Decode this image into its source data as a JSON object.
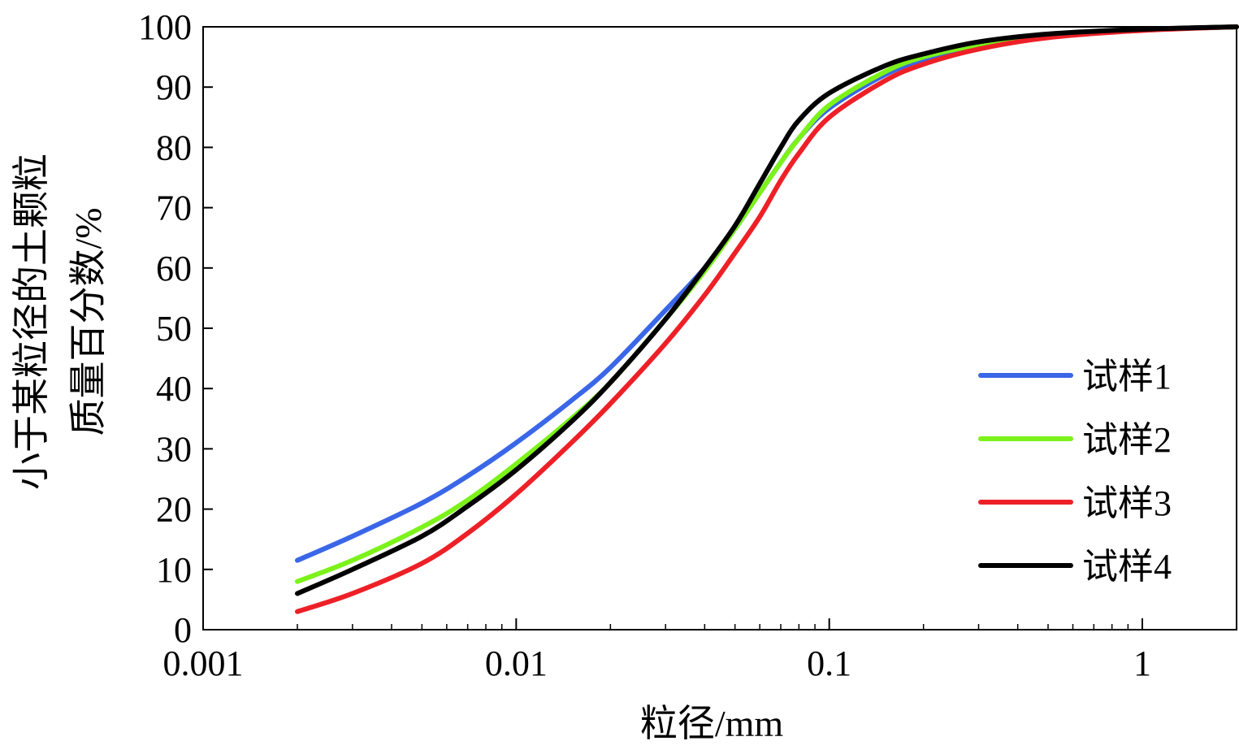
{
  "chart_data": {
    "type": "line",
    "title": "",
    "xlabel": "粒径/mm",
    "ylabel_lines": [
      "小于某粒径的土颗粒",
      "质量百分数/%"
    ],
    "x_scale": "log",
    "xlim": [
      0.001,
      2
    ],
    "ylim": [
      0,
      100
    ],
    "x_ticks": [
      0.001,
      0.01,
      0.1,
      1
    ],
    "x_tick_labels": [
      "0.001",
      "0.01",
      "0.1",
      "1"
    ],
    "y_ticks": [
      0,
      10,
      20,
      30,
      40,
      50,
      60,
      70,
      80,
      90,
      100
    ],
    "y_tick_labels": [
      "0",
      "10",
      "20",
      "30",
      "40",
      "50",
      "60",
      "70",
      "80",
      "90",
      "100"
    ],
    "grid": false,
    "legend_position": "bottom-right",
    "series": [
      {
        "name": "试样1",
        "color": "#3a66e8",
        "x": [
          0.002,
          0.003,
          0.005,
          0.007,
          0.01,
          0.015,
          0.02,
          0.03,
          0.04,
          0.05,
          0.06,
          0.07,
          0.08,
          0.1,
          0.15,
          0.2,
          0.3,
          0.5,
          1,
          2
        ],
        "y": [
          11.5,
          15.5,
          21,
          25.5,
          31,
          38,
          43.5,
          53,
          60,
          66.5,
          72.5,
          77.5,
          81.5,
          86.5,
          92,
          94.5,
          96.8,
          98.5,
          99.5,
          100
        ]
      },
      {
        "name": "试样2",
        "color": "#7cf21a",
        "x": [
          0.002,
          0.003,
          0.005,
          0.007,
          0.01,
          0.015,
          0.02,
          0.03,
          0.04,
          0.05,
          0.06,
          0.07,
          0.08,
          0.1,
          0.15,
          0.2,
          0.3,
          0.5,
          1,
          2
        ],
        "y": [
          8,
          11.5,
          17,
          21.5,
          27.5,
          35,
          41,
          51.5,
          59.5,
          66.5,
          72.5,
          77.5,
          81.5,
          87,
          92.5,
          95,
          97,
          98.6,
          99.5,
          100
        ]
      },
      {
        "name": "试样3",
        "color": "#ee2027",
        "x": [
          0.002,
          0.003,
          0.005,
          0.007,
          0.01,
          0.015,
          0.02,
          0.03,
          0.04,
          0.05,
          0.06,
          0.07,
          0.08,
          0.1,
          0.15,
          0.2,
          0.3,
          0.5,
          1,
          2
        ],
        "y": [
          3,
          6,
          11,
          16,
          22.5,
          31,
          37.5,
          47.5,
          55.5,
          62.5,
          68.5,
          74.5,
          79,
          85,
          91,
          93.8,
          96.3,
          98.2,
          99.4,
          100
        ]
      },
      {
        "name": "试样4",
        "color": "#000000",
        "x": [
          0.002,
          0.003,
          0.005,
          0.007,
          0.01,
          0.015,
          0.02,
          0.03,
          0.04,
          0.05,
          0.06,
          0.07,
          0.08,
          0.1,
          0.15,
          0.2,
          0.3,
          0.5,
          1,
          2
        ],
        "y": [
          6,
          10,
          15.5,
          20.5,
          26.5,
          34.5,
          41,
          51.5,
          60,
          67,
          74,
          80,
          84.5,
          89,
          93.5,
          95.5,
          97.5,
          98.8,
          99.6,
          100
        ]
      }
    ]
  }
}
